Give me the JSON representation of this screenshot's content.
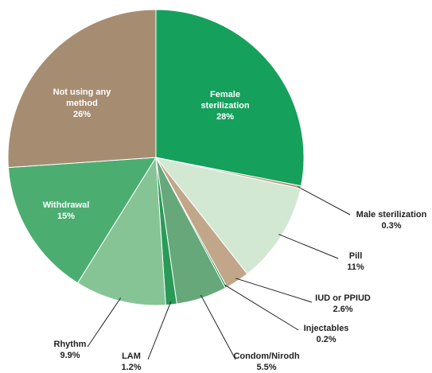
{
  "chart_data": {
    "type": "pie",
    "categories": [
      "Female sterilization",
      "Male sterilization",
      "Pill",
      "IUD or PPIUD",
      "Injectables",
      "Condom/Nirodh",
      "LAM",
      "Rhythm",
      "Withdrawal",
      "Not using any method"
    ],
    "values": [
      28,
      0.3,
      11,
      2.6,
      0.2,
      5.5,
      1.2,
      9.9,
      15,
      26
    ],
    "value_labels": [
      "28%",
      "0.3%",
      "11%",
      "2.6%",
      "0.2%",
      "5.5%",
      "1.2%",
      "9.9%",
      "15%",
      "26%"
    ],
    "colors": [
      "#15a05c",
      "#b59e83",
      "#d3e8d3",
      "#c1a68a",
      "#1f9a57",
      "#66a87a",
      "#2a9a58",
      "#86c496",
      "#4cad71",
      "#a68d72"
    ]
  }
}
